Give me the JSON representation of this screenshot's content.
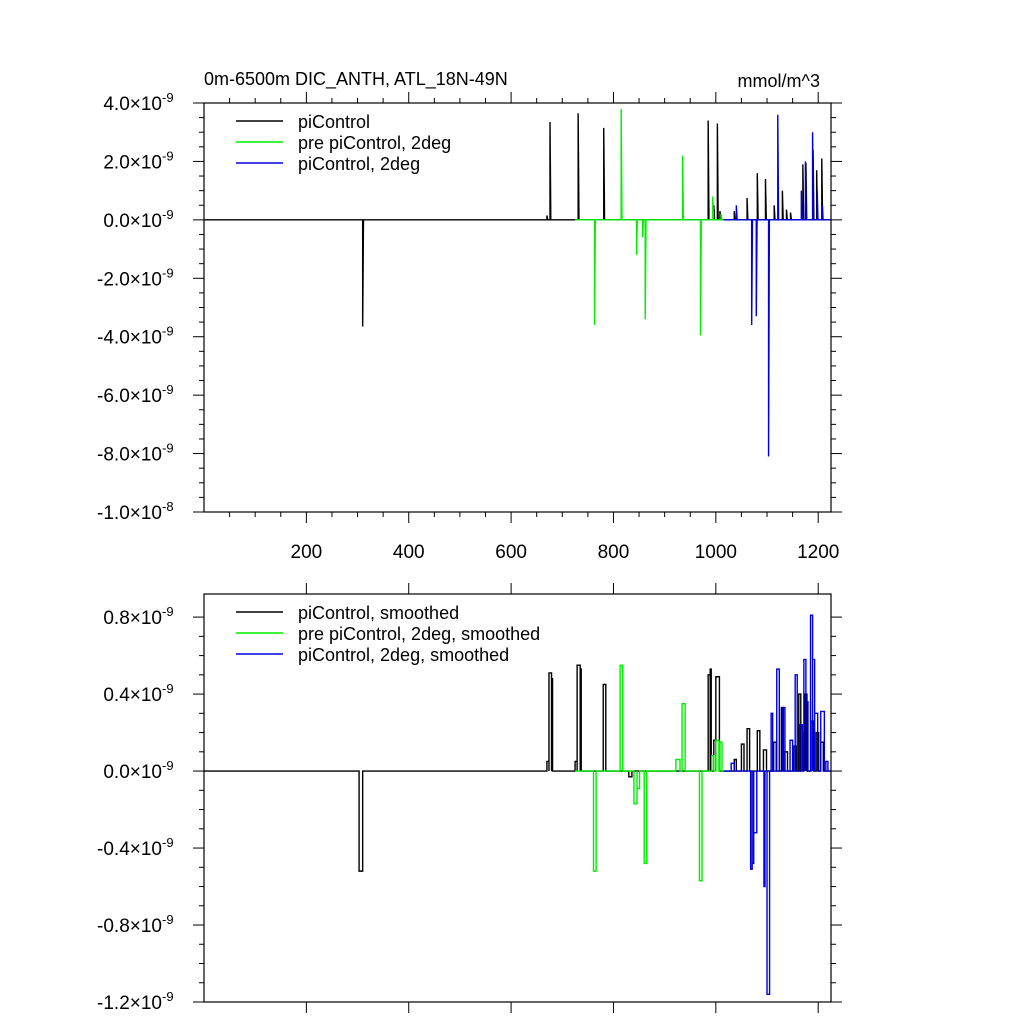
{
  "colors": {
    "piControl": "#000000",
    "pre_piControl_2deg": "#00ee00",
    "piControl_2deg": "#0000dd"
  },
  "top": {
    "title_left": "0m-6500m DIC_ANTH, ATL_18N-49N",
    "title_right": "mmol/m^3"
  },
  "chart_data": [
    {
      "type": "line",
      "title": "0m-6500m DIC_ANTH, ATL_18N-49N",
      "units": "mmol/m^3",
      "xlim": [
        0,
        1225
      ],
      "ylim": [
        -1e-08,
        4e-09
      ],
      "x_ticks": [
        200,
        400,
        600,
        800,
        1000,
        1200
      ],
      "x_tick_labels": [
        "200",
        "400",
        "600",
        "800",
        "1000",
        "1200"
      ],
      "y_ticks": [
        4e-09,
        2e-09,
        0,
        -2e-09,
        -4e-09,
        -6e-09,
        -8e-09,
        -1e-08
      ],
      "y_tick_labels": [
        {
          "mant": "4.0",
          "exp": "-9"
        },
        {
          "mant": "2.0",
          "exp": "-9"
        },
        {
          "mant": "0.0",
          "exp": "-9"
        },
        {
          "mant": "-2.0",
          "exp": "-9"
        },
        {
          "mant": "-4.0",
          "exp": "-9"
        },
        {
          "mant": "-6.0",
          "exp": "-9"
        },
        {
          "mant": "-8.0",
          "exp": "-9"
        },
        {
          "mant": "-1.0",
          "exp": "-8"
        }
      ],
      "legend_position": "top-left",
      "series": [
        {
          "name": "piControl",
          "color": "#000000",
          "range": [
            0,
            1225
          ],
          "spikes": [
            [
              310,
              -3.65e-09
            ],
            [
              670,
              1.5e-10
            ],
            [
              676,
              3.35e-09
            ],
            [
              731,
              3.65e-09
            ],
            [
              781,
              3.15e-09
            ],
            [
              985,
              3.4e-09
            ],
            [
              996,
              5e-10
            ],
            [
              1003,
              3.3e-09
            ],
            [
              1008,
              3e-10
            ],
            [
              1036,
              3e-10
            ],
            [
              1061,
              7.5e-10
            ],
            [
              1081,
              1.6e-09
            ],
            [
              1097,
              1.4e-09
            ],
            [
              1114,
              5e-10
            ],
            [
              1130,
              1e-09
            ],
            [
              1138,
              3.5e-10
            ],
            [
              1146,
              2.5e-10
            ],
            [
              1170,
              1.9e-09
            ],
            [
              1176,
              1.95e-09
            ],
            [
              1190,
              2.4e-09
            ],
            [
              1197,
              1.7e-09
            ],
            [
              1207,
              2.1e-09
            ]
          ]
        },
        {
          "name": "pre piControl, 2deg",
          "color": "#00ee00",
          "range": [
            725,
            1020
          ],
          "spikes": [
            [
              763,
              -3.6e-09
            ],
            [
              815,
              3.8e-09
            ],
            [
              845,
              -1.2e-09
            ],
            [
              857,
              -6e-10
            ],
            [
              862,
              -3.4e-09
            ],
            [
              935,
              2.2e-09
            ],
            [
              970,
              -3.95e-09
            ],
            [
              994,
              8e-10
            ],
            [
              1010,
              2e-10
            ]
          ]
        },
        {
          "name": "piControl, 2deg",
          "color": "#0000dd",
          "range": [
            1015,
            1225
          ],
          "spikes": [
            [
              1040,
              5e-10
            ],
            [
              1070,
              -3.6e-09
            ],
            [
              1079,
              -3.3e-09
            ],
            [
              1103,
              -8.1e-09
            ],
            [
              1121,
              3.6e-09
            ],
            [
              1167,
              1e-09
            ],
            [
              1175,
              2e-09
            ],
            [
              1189,
              3e-09
            ],
            [
              1198,
              1e-09
            ],
            [
              1208,
              5e-10
            ]
          ]
        }
      ]
    },
    {
      "type": "line",
      "title": "",
      "xlim": [
        0,
        1225
      ],
      "ylim": [
        -1.2e-09,
        9.2e-10
      ],
      "x_ticks": [
        200,
        400,
        600,
        800,
        1000,
        1200
      ],
      "x_tick_labels": [],
      "y_ticks": [
        8e-10,
        4e-10,
        0,
        -4e-10,
        -8e-10,
        -1.2e-09
      ],
      "y_tick_labels": [
        {
          "mant": "0.8",
          "exp": "-9"
        },
        {
          "mant": "0.4",
          "exp": "-9"
        },
        {
          "mant": "0.0",
          "exp": "-9"
        },
        {
          "mant": "-0.4",
          "exp": "-9"
        },
        {
          "mant": "-0.8",
          "exp": "-9"
        },
        {
          "mant": "-1.2",
          "exp": "-9"
        }
      ],
      "legend_position": "top-left",
      "series": [
        {
          "name": "piControl, smoothed",
          "color": "#000000",
          "range": [
            0,
            1225
          ],
          "blocks": [
            [
              303,
              310,
              -5.2e-10
            ],
            [
              670,
              674,
              5e-11
            ],
            [
              674,
              679,
              5.1e-10
            ],
            [
              679,
              681,
              4.8e-10
            ],
            [
              725,
              729,
              5e-11
            ],
            [
              729,
              735,
              5.5e-10
            ],
            [
              735,
              737,
              5.3e-10
            ],
            [
              780,
              785,
              4.5e-10
            ],
            [
              830,
              836,
              -3e-11
            ],
            [
              985,
              989,
              5e-10
            ],
            [
              989,
              991,
              5.3e-10
            ],
            [
              996,
              1000,
              1.6e-10
            ],
            [
              1000,
              1007,
              4.9e-10
            ],
            [
              1036,
              1040,
              6e-11
            ],
            [
              1050,
              1055,
              1.4e-10
            ],
            [
              1061,
              1066,
              2.2e-10
            ],
            [
              1081,
              1086,
              2.1e-10
            ],
            [
              1093,
              1099,
              1.1e-10
            ],
            [
              1113,
              1118,
              1.5e-10
            ],
            [
              1128,
              1132,
              3.3e-10
            ],
            [
              1135,
              1140,
              1e-10
            ],
            [
              1152,
              1157,
              1.3e-10
            ],
            [
              1162,
              1166,
              4e-10
            ],
            [
              1170,
              1174,
              2e-10
            ],
            [
              1174,
              1178,
              4e-10
            ],
            [
              1186,
              1191,
              2.6e-10
            ],
            [
              1196,
              1201,
              2e-10
            ],
            [
              1205,
              1210,
              1.5e-10
            ]
          ]
        },
        {
          "name": "pre piControl, 2deg, smoothed",
          "color": "#00ee00",
          "range": [
            725,
            1020
          ],
          "blocks": [
            [
              761,
              766,
              -5.2e-10
            ],
            [
              813,
              818,
              5.5e-10
            ],
            [
              840,
              846,
              -1.7e-10
            ],
            [
              846,
              851,
              -9e-11
            ],
            [
              860,
              865,
              -4.8e-10
            ],
            [
              922,
              930,
              6e-11
            ],
            [
              934,
              940,
              3.5e-10
            ],
            [
              968,
              973,
              -5.7e-10
            ],
            [
              992,
              996,
              8e-11
            ],
            [
              1000,
              1006,
              1.6e-10
            ],
            [
              1008,
              1012,
              1.5e-10
            ]
          ]
        },
        {
          "name": "piControl, 2deg, smoothed",
          "color": "#0000dd",
          "range": [
            1015,
            1225
          ],
          "blocks": [
            [
              1030,
              1036,
              4e-11
            ],
            [
              1068,
              1071,
              -5.1e-10
            ],
            [
              1071,
              1074,
              -4.8e-10
            ],
            [
              1074,
              1080,
              -3.2e-10
            ],
            [
              1094,
              1096,
              -6e-10
            ],
            [
              1100,
              1105,
              -1.16e-09
            ],
            [
              1108,
              1111,
              3e-10
            ],
            [
              1119,
              1124,
              5.3e-10
            ],
            [
              1130,
              1135,
              3.3e-10
            ],
            [
              1145,
              1150,
              1.6e-10
            ],
            [
              1155,
              1159,
              5e-10
            ],
            [
              1164,
              1169,
              2.4e-10
            ],
            [
              1172,
              1176,
              5.8e-10
            ],
            [
              1176,
              1180,
              3.6e-10
            ],
            [
              1185,
              1189,
              8.1e-10
            ],
            [
              1189,
              1193,
              5.8e-10
            ],
            [
              1193,
              1199,
              3e-10
            ],
            [
              1205,
              1212,
              3.1e-10
            ],
            [
              1215,
              1219,
              5e-11
            ]
          ]
        }
      ]
    }
  ]
}
